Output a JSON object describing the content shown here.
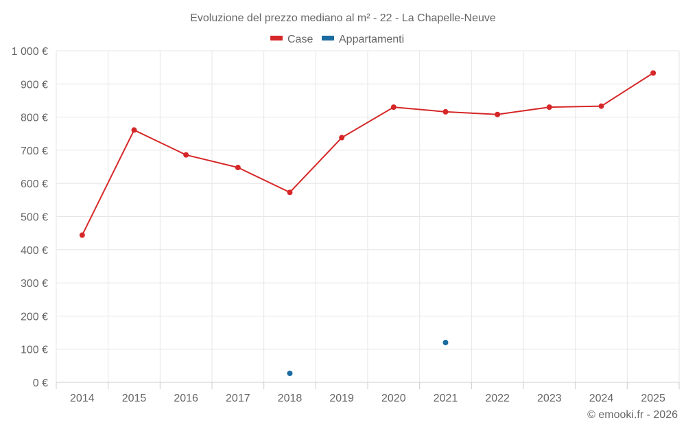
{
  "chart_data": {
    "type": "line",
    "title": "Evoluzione del prezzo mediano al m² - 22 - La Chapelle-Neuve",
    "categories": [
      "2014",
      "2015",
      "2016",
      "2017",
      "2018",
      "2019",
      "2020",
      "2021",
      "2022",
      "2023",
      "2024",
      "2025"
    ],
    "ylim": [
      0,
      1000
    ],
    "yticks": [
      0,
      100,
      200,
      300,
      400,
      500,
      600,
      700,
      800,
      900,
      1000
    ],
    "ytick_labels": [
      "0 €",
      "100 €",
      "200 €",
      "300 €",
      "400 €",
      "500 €",
      "600 €",
      "700 €",
      "800 €",
      "900 €",
      "1 000 €"
    ],
    "grid": true,
    "legend_position": "top-center",
    "series": [
      {
        "name": "Case",
        "color": "#d62728",
        "values": [
          444,
          761,
          686,
          648,
          573,
          738,
          830,
          816,
          808,
          830,
          833,
          933
        ]
      },
      {
        "name": "Appartamenti",
        "color": "#1a6ba0",
        "values": [
          null,
          null,
          null,
          null,
          27,
          null,
          null,
          120,
          null,
          null,
          null,
          null
        ]
      }
    ]
  },
  "credit": "© emooki.fr - 2026"
}
